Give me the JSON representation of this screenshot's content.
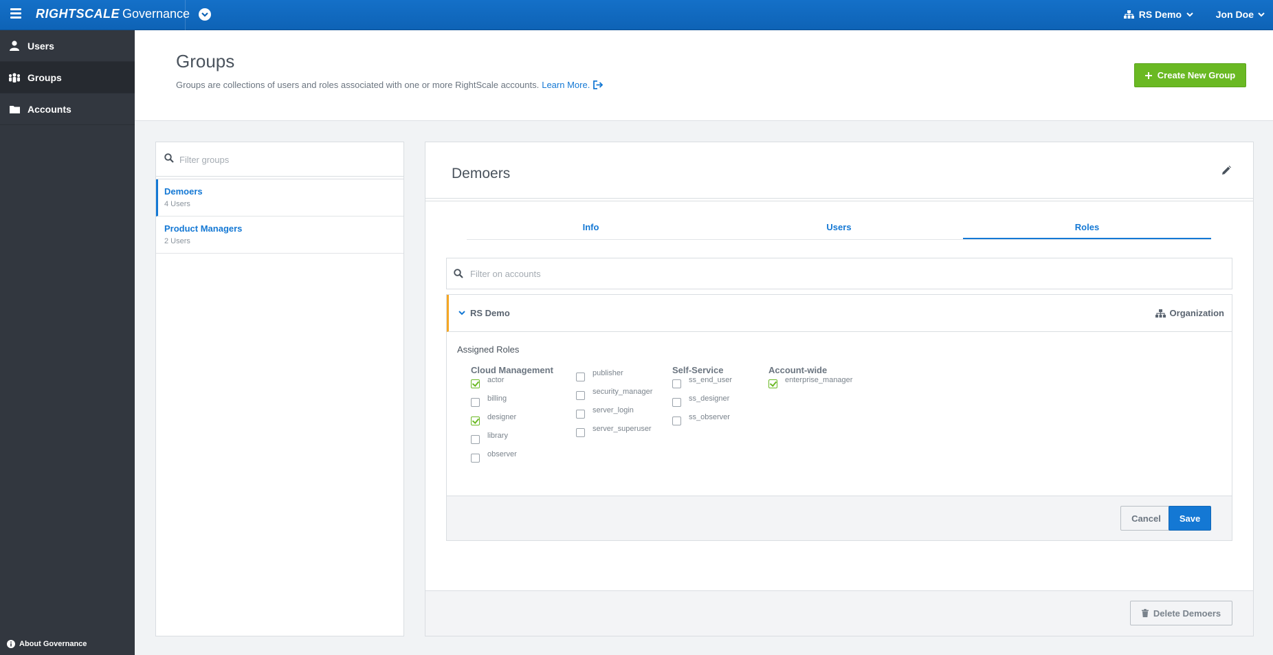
{
  "topbar": {
    "brand_logo": "RIGHTSCALE",
    "brand_product": "Governance",
    "org_name": "RS Demo",
    "user_name": "Jon Doe"
  },
  "sidebar": {
    "items": [
      {
        "label": "Users",
        "icon": "user-icon",
        "active": false
      },
      {
        "label": "Groups",
        "icon": "groups-icon",
        "active": true
      },
      {
        "label": "Accounts",
        "icon": "folder-icon",
        "active": false
      }
    ],
    "about": "About Governance"
  },
  "header": {
    "title": "Groups",
    "description": "Groups are collections of users and roles associated with one or more RightScale accounts.",
    "learn_more": "Learn More.",
    "create_button": "Create New Group"
  },
  "groups": {
    "filter_placeholder": "Filter groups",
    "items": [
      {
        "name": "Demoers",
        "count": "4 Users",
        "selected": true
      },
      {
        "name": "Product Managers",
        "count": "2 Users",
        "selected": false
      }
    ]
  },
  "detail": {
    "title": "Demoers",
    "tabs": [
      {
        "label": "Info",
        "active": false
      },
      {
        "label": "Users",
        "active": false
      },
      {
        "label": "Roles",
        "active": true
      }
    ],
    "account_filter_placeholder": "Filter on accounts",
    "account": {
      "name": "RS Demo",
      "type": "Organization"
    },
    "assigned_roles_label": "Assigned Roles",
    "role_columns": [
      {
        "title": "Cloud Management",
        "roles": [
          {
            "name": "actor",
            "checked": true
          },
          {
            "name": "billing",
            "checked": false
          },
          {
            "name": "designer",
            "checked": true
          },
          {
            "name": "library",
            "checked": false
          },
          {
            "name": "observer",
            "checked": false
          }
        ]
      },
      {
        "title": "",
        "roles": [
          {
            "name": "publisher",
            "checked": false
          },
          {
            "name": "security_manager",
            "checked": false
          },
          {
            "name": "server_login",
            "checked": false
          },
          {
            "name": "server_superuser",
            "checked": false
          }
        ]
      },
      {
        "title": "Self-Service",
        "roles": [
          {
            "name": "ss_end_user",
            "checked": false
          },
          {
            "name": "ss_designer",
            "checked": false
          },
          {
            "name": "ss_observer",
            "checked": false
          }
        ]
      },
      {
        "title": "Account-wide",
        "roles": [
          {
            "name": "enterprise_manager",
            "checked": true
          }
        ]
      }
    ],
    "cancel_label": "Cancel",
    "save_label": "Save",
    "delete_label": "Delete Demoers"
  },
  "colors": {
    "topbar": "#0e63b6",
    "sidebar": "#32373f",
    "link": "#1478d4",
    "create": "#6ab923",
    "account_accent": "#f5a623"
  }
}
